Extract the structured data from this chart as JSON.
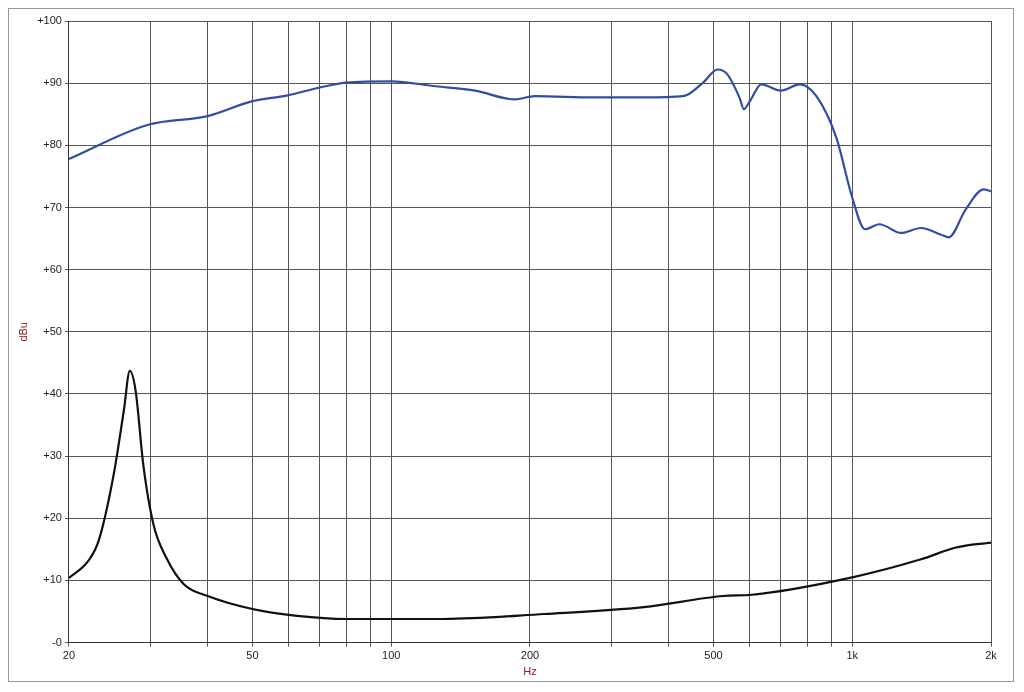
{
  "chart_data": {
    "type": "line",
    "xlabel": "Hz",
    "ylabel": "dBu",
    "log": "x",
    "grid": true,
    "marker": "none",
    "line_style": "solid",
    "xlim": [
      20,
      2000
    ],
    "ylim": [
      0,
      100
    ],
    "xticks": [
      20,
      {
        "value": 30,
        "label": null
      },
      {
        "value": 40,
        "label": null
      },
      50,
      {
        "value": 60,
        "label": null
      },
      {
        "value": 70,
        "label": null
      },
      {
        "value": 80,
        "label": null
      },
      {
        "value": 90,
        "label": null
      },
      100,
      200,
      {
        "value": 300,
        "label": null
      },
      {
        "value": 400,
        "label": null
      },
      500,
      {
        "value": 600,
        "label": null
      },
      {
        "value": 700,
        "label": null
      },
      {
        "value": 800,
        "label": null
      },
      {
        "value": 900,
        "label": null
      },
      {
        "value": 1000,
        "label": "1k"
      },
      {
        "value": 2000,
        "label": "2k"
      }
    ],
    "yticks": [
      {
        "value": 0,
        "label": "-0"
      },
      {
        "value": 10,
        "label": "+10"
      },
      {
        "value": 20,
        "label": "+20"
      },
      {
        "value": 30,
        "label": "+30"
      },
      {
        "value": 40,
        "label": "+40"
      },
      {
        "value": 50,
        "label": "+50"
      },
      {
        "value": 60,
        "label": "+60"
      },
      {
        "value": 70,
        "label": "+70"
      },
      {
        "value": 80,
        "label": "+80"
      },
      {
        "value": 90,
        "label": "+90"
      },
      {
        "value": 100,
        "label": "+100"
      }
    ],
    "series": [
      {
        "color": "#2e4fa3",
        "x": [
          20,
          29.7,
          40,
          50,
          59.3,
          72,
          80,
          100,
          125,
          152,
          185,
          205,
          276,
          353,
          430,
          475,
          510,
          535,
          570,
          582,
          600,
          635,
          700,
          770,
          836,
          924,
          1000,
          1066,
          1145,
          1277,
          1410,
          1560,
          1620,
          1763,
          1928,
          2000
        ],
        "values": [
          77.8,
          83.3,
          84.7,
          87.1,
          88.0,
          89.5,
          90.1,
          90.3,
          89.5,
          88.8,
          87.4,
          87.9,
          87.7,
          87.7,
          87.9,
          90.1,
          92.2,
          91.5,
          87.6,
          85.8,
          87.1,
          89.8,
          88.8,
          89.8,
          87.9,
          81.2,
          71.6,
          66.5,
          67.3,
          65.9,
          66.7,
          65.6,
          65.2,
          69.7,
          72.9,
          72.6
        ]
      },
      {
        "color": "#111111",
        "x": [
          20,
          22,
          23.2,
          25,
          26.3,
          27.1,
          27.9,
          29,
          30.5,
          32.5,
          35.5,
          40,
          50,
          62.5,
          80,
          130,
          215,
          353,
          525,
          606,
          1000,
          1410,
          1680,
          2000
        ],
        "values": [
          10.4,
          13.1,
          16.4,
          27,
          37.3,
          43.7,
          40.5,
          28.5,
          19,
          13.7,
          9.4,
          7.5,
          5.4,
          4.3,
          3.8,
          3.8,
          4.6,
          5.7,
          7.5,
          7.7,
          10.5,
          13.4,
          15.3,
          16.1
        ]
      }
    ]
  }
}
